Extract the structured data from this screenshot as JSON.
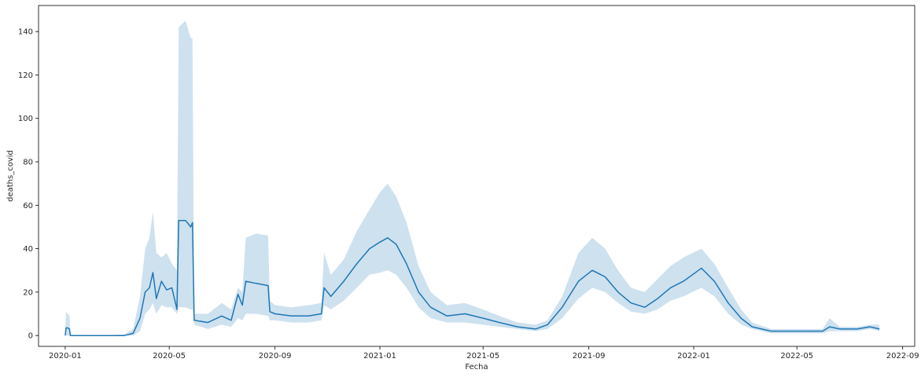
{
  "chart_data": {
    "type": "line",
    "title": "",
    "xlabel": "Fecha",
    "ylabel": "deaths_covid",
    "x_axis_kind": "date",
    "xlim": [
      "2019-12-01",
      "2022-09-15"
    ],
    "ylim": [
      -5,
      152
    ],
    "x_ticks": [
      "2020-01",
      "2020-05",
      "2020-09",
      "2021-01",
      "2021-05",
      "2021-09",
      "2022-01",
      "2022-05",
      "2022-09"
    ],
    "y_ticks": [
      0,
      20,
      40,
      60,
      80,
      100,
      120,
      140
    ],
    "grid": false,
    "legend": "none",
    "colors": {
      "line": "#1f77b4",
      "band": "#1f77b4"
    },
    "series": [
      {
        "values": [
          {
            "x": "2020-01-01",
            "y": 0,
            "lo": 0,
            "hi": 0
          },
          {
            "x": "2020-01-02",
            "y": 3.5,
            "lo": 0,
            "hi": 11
          },
          {
            "x": "2020-01-04",
            "y": 3.5,
            "lo": 0,
            "hi": 10
          },
          {
            "x": "2020-01-06",
            "y": 3.0,
            "lo": 0,
            "hi": 9
          },
          {
            "x": "2020-01-07",
            "y": 0,
            "lo": 0,
            "hi": 0
          },
          {
            "x": "2020-02-15",
            "y": 0,
            "lo": 0,
            "hi": 0
          },
          {
            "x": "2020-03-10",
            "y": 0,
            "lo": 0,
            "hi": 0.5
          },
          {
            "x": "2020-03-20",
            "y": 1,
            "lo": 0,
            "hi": 3
          },
          {
            "x": "2020-03-28",
            "y": 8,
            "lo": 2,
            "hi": 18
          },
          {
            "x": "2020-04-03",
            "y": 20,
            "lo": 10,
            "hi": 40
          },
          {
            "x": "2020-04-08",
            "y": 22,
            "lo": 12,
            "hi": 45
          },
          {
            "x": "2020-04-12",
            "y": 29,
            "lo": 15,
            "hi": 57
          },
          {
            "x": "2020-04-16",
            "y": 17,
            "lo": 10,
            "hi": 38
          },
          {
            "x": "2020-04-22",
            "y": 25,
            "lo": 14,
            "hi": 36
          },
          {
            "x": "2020-04-28",
            "y": 21,
            "lo": 13,
            "hi": 38
          },
          {
            "x": "2020-05-04",
            "y": 22,
            "lo": 13,
            "hi": 33
          },
          {
            "x": "2020-05-10",
            "y": 12,
            "lo": 10,
            "hi": 30
          },
          {
            "x": "2020-05-12",
            "y": 53,
            "lo": 13,
            "hi": 142
          },
          {
            "x": "2020-05-20",
            "y": 53,
            "lo": 13,
            "hi": 145
          },
          {
            "x": "2020-05-26",
            "y": 50,
            "lo": 12,
            "hi": 137
          },
          {
            "x": "2020-05-28",
            "y": 52,
            "lo": 12,
            "hi": 137
          },
          {
            "x": "2020-05-30",
            "y": 7,
            "lo": 5,
            "hi": 10
          },
          {
            "x": "2020-06-15",
            "y": 6,
            "lo": 3,
            "hi": 10
          },
          {
            "x": "2020-07-01",
            "y": 9,
            "lo": 5,
            "hi": 15
          },
          {
            "x": "2020-07-12",
            "y": 7,
            "lo": 4,
            "hi": 12
          },
          {
            "x": "2020-07-20",
            "y": 19,
            "lo": 8,
            "hi": 22
          },
          {
            "x": "2020-07-25",
            "y": 14,
            "lo": 7,
            "hi": 20
          },
          {
            "x": "2020-07-29",
            "y": 25,
            "lo": 10,
            "hi": 45
          },
          {
            "x": "2020-08-10",
            "y": 24,
            "lo": 10,
            "hi": 47
          },
          {
            "x": "2020-08-24",
            "y": 23,
            "lo": 9,
            "hi": 46
          },
          {
            "x": "2020-08-26",
            "y": 11,
            "lo": 7,
            "hi": 16
          },
          {
            "x": "2020-09-01",
            "y": 10,
            "lo": 7,
            "hi": 14
          },
          {
            "x": "2020-09-20",
            "y": 9,
            "lo": 6,
            "hi": 13
          },
          {
            "x": "2020-10-10",
            "y": 9,
            "lo": 6,
            "hi": 14
          },
          {
            "x": "2020-10-25",
            "y": 10,
            "lo": 7,
            "hi": 15
          },
          {
            "x": "2020-10-28",
            "y": 22,
            "lo": 14,
            "hi": 38
          },
          {
            "x": "2020-11-05",
            "y": 18,
            "lo": 12,
            "hi": 28
          },
          {
            "x": "2020-11-20",
            "y": 25,
            "lo": 16,
            "hi": 35
          },
          {
            "x": "2020-12-05",
            "y": 33,
            "lo": 22,
            "hi": 48
          },
          {
            "x": "2020-12-20",
            "y": 40,
            "lo": 28,
            "hi": 58
          },
          {
            "x": "2021-01-01",
            "y": 43,
            "lo": 29,
            "hi": 66
          },
          {
            "x": "2021-01-10",
            "y": 45,
            "lo": 30,
            "hi": 70
          },
          {
            "x": "2021-01-20",
            "y": 42,
            "lo": 28,
            "hi": 64
          },
          {
            "x": "2021-02-01",
            "y": 33,
            "lo": 22,
            "hi": 52
          },
          {
            "x": "2021-02-15",
            "y": 20,
            "lo": 13,
            "hi": 32
          },
          {
            "x": "2021-03-01",
            "y": 13,
            "lo": 8,
            "hi": 20
          },
          {
            "x": "2021-03-20",
            "y": 9,
            "lo": 6,
            "hi": 14
          },
          {
            "x": "2021-04-10",
            "y": 10,
            "lo": 6,
            "hi": 15
          },
          {
            "x": "2021-05-01",
            "y": 8,
            "lo": 5,
            "hi": 12
          },
          {
            "x": "2021-05-20",
            "y": 6,
            "lo": 4,
            "hi": 9
          },
          {
            "x": "2021-06-10",
            "y": 4,
            "lo": 3,
            "hi": 6
          },
          {
            "x": "2021-07-01",
            "y": 3,
            "lo": 2,
            "hi": 5
          },
          {
            "x": "2021-07-15",
            "y": 5,
            "lo": 3,
            "hi": 7
          },
          {
            "x": "2021-08-01",
            "y": 13,
            "lo": 8,
            "hi": 18
          },
          {
            "x": "2021-08-20",
            "y": 25,
            "lo": 17,
            "hi": 38
          },
          {
            "x": "2021-09-05",
            "y": 30,
            "lo": 22,
            "hi": 45
          },
          {
            "x": "2021-09-20",
            "y": 27,
            "lo": 20,
            "hi": 40
          },
          {
            "x": "2021-10-05",
            "y": 20,
            "lo": 15,
            "hi": 30
          },
          {
            "x": "2021-10-20",
            "y": 15,
            "lo": 11,
            "hi": 22
          },
          {
            "x": "2021-11-05",
            "y": 13,
            "lo": 10,
            "hi": 20
          },
          {
            "x": "2021-11-20",
            "y": 17,
            "lo": 12,
            "hi": 26
          },
          {
            "x": "2021-12-05",
            "y": 22,
            "lo": 16,
            "hi": 32
          },
          {
            "x": "2021-12-20",
            "y": 25,
            "lo": 18,
            "hi": 36
          },
          {
            "x": "2022-01-10",
            "y": 31,
            "lo": 22,
            "hi": 40
          },
          {
            "x": "2022-01-25",
            "y": 25,
            "lo": 18,
            "hi": 33
          },
          {
            "x": "2022-02-10",
            "y": 15,
            "lo": 10,
            "hi": 22
          },
          {
            "x": "2022-02-25",
            "y": 8,
            "lo": 5,
            "hi": 12
          },
          {
            "x": "2022-03-10",
            "y": 4,
            "lo": 3,
            "hi": 6
          },
          {
            "x": "2022-04-01",
            "y": 2,
            "lo": 1,
            "hi": 3
          },
          {
            "x": "2022-05-01",
            "y": 2,
            "lo": 1,
            "hi": 3
          },
          {
            "x": "2022-05-31",
            "y": 2,
            "lo": 1,
            "hi": 3
          },
          {
            "x": "2022-06-08",
            "y": 4,
            "lo": 2,
            "hi": 8
          },
          {
            "x": "2022-06-20",
            "y": 3,
            "lo": 2,
            "hi": 4
          },
          {
            "x": "2022-07-10",
            "y": 3,
            "lo": 2,
            "hi": 4
          },
          {
            "x": "2022-07-25",
            "y": 4,
            "lo": 3,
            "hi": 5
          },
          {
            "x": "2022-08-05",
            "y": 3,
            "lo": 2,
            "hi": 5
          }
        ]
      }
    ]
  }
}
